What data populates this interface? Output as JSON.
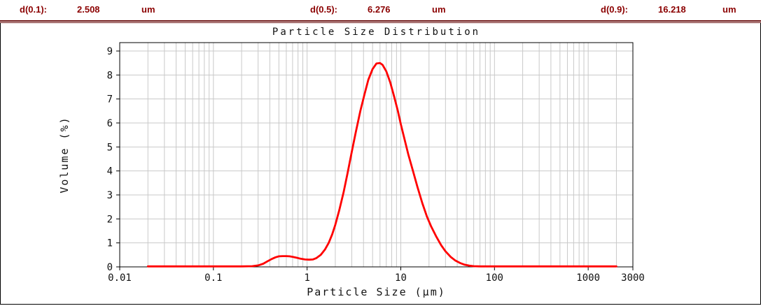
{
  "header": {
    "d10": {
      "label": "d(0.1):",
      "value": "2.508",
      "unit": "um"
    },
    "d50": {
      "label": "d(0.5):",
      "value": "6.276",
      "unit": "um"
    },
    "d90": {
      "label": "d(0.9):",
      "value": "16.218",
      "unit": "um"
    },
    "text_color": "#8b0000",
    "rule_color": "#6b1111"
  },
  "chart_data": {
    "type": "line",
    "title": "Particle Size Distribution",
    "xlabel": "Particle Size (µm)",
    "ylabel": "Volume (%)",
    "x_scale": "log",
    "xlim": [
      0.01,
      3000
    ],
    "ylim": [
      0,
      9
    ],
    "x_ticks": [
      0.01,
      0.1,
      1,
      10,
      100,
      1000,
      3000
    ],
    "x_tick_labels": [
      "0.01",
      "0.1",
      "1",
      "10",
      "100",
      "1000",
      "3000"
    ],
    "y_ticks": [
      0,
      1,
      2,
      3,
      4,
      5,
      6,
      7,
      8,
      9
    ],
    "grid": true,
    "grid_color": "#c9c9c9",
    "line_color": "#ff0000",
    "series": [
      {
        "name": "volume",
        "points": [
          [
            0.02,
            0.02
          ],
          [
            0.1,
            0.02
          ],
          [
            0.2,
            0.02
          ],
          [
            0.26,
            0.03
          ],
          [
            0.3,
            0.06
          ],
          [
            0.34,
            0.13
          ],
          [
            0.38,
            0.24
          ],
          [
            0.42,
            0.33
          ],
          [
            0.46,
            0.4
          ],
          [
            0.5,
            0.44
          ],
          [
            0.55,
            0.45
          ],
          [
            0.6,
            0.45
          ],
          [
            0.65,
            0.44
          ],
          [
            0.7,
            0.42
          ],
          [
            0.78,
            0.38
          ],
          [
            0.85,
            0.34
          ],
          [
            0.95,
            0.31
          ],
          [
            1.05,
            0.3
          ],
          [
            1.15,
            0.31
          ],
          [
            1.25,
            0.36
          ],
          [
            1.4,
            0.5
          ],
          [
            1.55,
            0.72
          ],
          [
            1.7,
            1.0
          ],
          [
            1.85,
            1.35
          ],
          [
            2.0,
            1.75
          ],
          [
            2.2,
            2.35
          ],
          [
            2.45,
            3.1
          ],
          [
            2.7,
            3.9
          ],
          [
            3.0,
            4.8
          ],
          [
            3.3,
            5.6
          ],
          [
            3.7,
            6.5
          ],
          [
            4.1,
            7.2
          ],
          [
            4.5,
            7.8
          ],
          [
            5.0,
            8.25
          ],
          [
            5.5,
            8.48
          ],
          [
            6.0,
            8.5
          ],
          [
            6.4,
            8.42
          ],
          [
            7.0,
            8.15
          ],
          [
            7.7,
            7.7
          ],
          [
            8.5,
            7.1
          ],
          [
            9.3,
            6.5
          ],
          [
            10,
            5.95
          ],
          [
            11,
            5.3
          ],
          [
            12,
            4.7
          ],
          [
            13.5,
            4.0
          ],
          [
            15,
            3.35
          ],
          [
            17,
            2.65
          ],
          [
            19,
            2.1
          ],
          [
            21,
            1.7
          ],
          [
            24,
            1.25
          ],
          [
            27,
            0.9
          ],
          [
            30,
            0.65
          ],
          [
            34,
            0.42
          ],
          [
            38,
            0.27
          ],
          [
            43,
            0.16
          ],
          [
            48,
            0.09
          ],
          [
            54,
            0.05
          ],
          [
            60,
            0.03
          ],
          [
            70,
            0.02
          ],
          [
            100,
            0.02
          ],
          [
            300,
            0.02
          ],
          [
            1000,
            0.02
          ],
          [
            2000,
            0.02
          ]
        ]
      }
    ]
  }
}
